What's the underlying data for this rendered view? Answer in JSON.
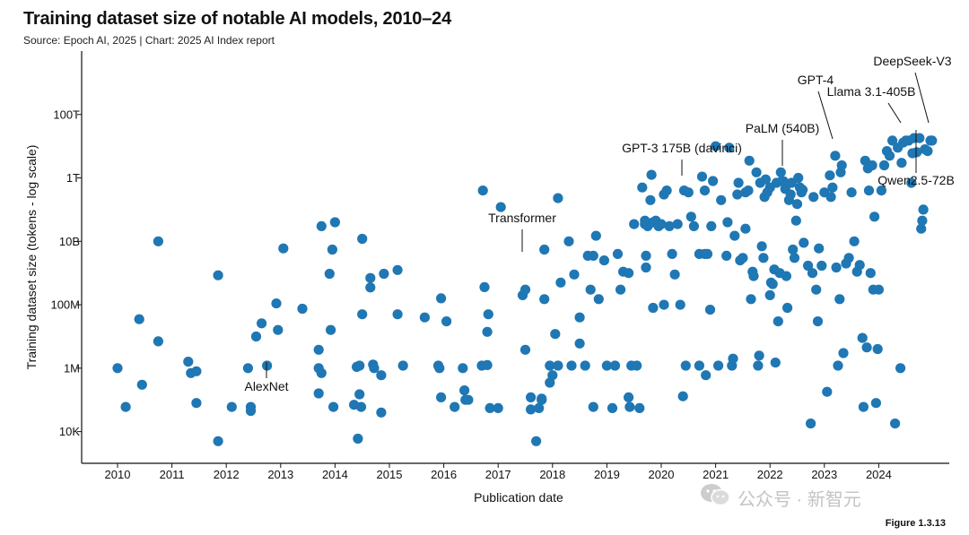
{
  "header": {
    "title": "Training dataset size of notable AI models, 2010–24",
    "subtitle": "Source: Epoch AI, 2025 | Chart: 2025 AI Index report"
  },
  "footer": {
    "figure_label": "Figure 1.3.13",
    "watermark_text": "公众号 · 新智元"
  },
  "colors": {
    "point": "#1f77b4",
    "axis": "#111111",
    "watermark": "#bdbdbd"
  },
  "chart_data": {
    "type": "scatter",
    "title": "Training dataset size of notable AI models, 2010–24",
    "xlabel": "Publication date",
    "ylabel": "Training dataset size (tokens - log scale)",
    "y_scale": "log",
    "xlim": [
      2009.7,
      2025.1
    ],
    "ylim": [
      1000,
      10000000000000000
    ],
    "x_ticks": [
      "2010",
      "2011",
      "2012",
      "2013",
      "2014",
      "2015",
      "2016",
      "2017",
      "2018",
      "2019",
      "2020",
      "2021",
      "2022",
      "2023",
      "2024"
    ],
    "y_ticks": [
      {
        "label": "10K",
        "value": 10000
      },
      {
        "label": "1M",
        "value": 1000000
      },
      {
        "label": "100M",
        "value": 100000000
      },
      {
        "label": "10B",
        "value": 10000000000
      },
      {
        "label": "1T",
        "value": 1000000000000
      },
      {
        "label": "100T",
        "value": 100000000000000
      }
    ],
    "grid": false,
    "legend": "none",
    "annotations": [
      {
        "label": "AlexNet",
        "x": 2012.75,
        "y": 1200000
      },
      {
        "label": "Transformer",
        "x": 2017.45,
        "y": 200000000
      },
      {
        "label": "GPT-3 175B (davinci)",
        "x": 2020.42,
        "y": 400000000000
      },
      {
        "label": "PaLM (540B)",
        "x": 2022.25,
        "y": 780000000000
      },
      {
        "label": "GPT-4",
        "x": 2023.2,
        "y": 5000000000000
      },
      {
        "label": "Llama 3.1-405B",
        "x": 2024.55,
        "y": 15000000000000
      },
      {
        "label": "DeepSeek-V3",
        "x": 2024.98,
        "y": 15000000000000
      },
      {
        "label": "Qwen2.5-72B",
        "x": 2024.75,
        "y": 18000000000000
      }
    ],
    "points": [
      [
        2010.0,
        1000000
      ],
      [
        2010.15,
        60000
      ],
      [
        2010.4,
        35000000
      ],
      [
        2010.45,
        300000
      ],
      [
        2010.75,
        10000000000
      ],
      [
        2010.75,
        7000000
      ],
      [
        2011.3,
        1600000
      ],
      [
        2011.35,
        700000
      ],
      [
        2011.45,
        800000
      ],
      [
        2011.45,
        80000
      ],
      [
        2011.85,
        5000
      ],
      [
        2011.85,
        850000000
      ],
      [
        2012.1,
        60000
      ],
      [
        2012.4,
        1000000
      ],
      [
        2012.45,
        60000
      ],
      [
        2012.45,
        45000
      ],
      [
        2012.55,
        10000000
      ],
      [
        2012.65,
        26000000
      ],
      [
        2012.75,
        1200000
      ],
      [
        2012.92,
        110000000
      ],
      [
        2012.95,
        16000000
      ],
      [
        2013.05,
        6000000000
      ],
      [
        2013.4,
        75000000
      ],
      [
        2013.7,
        3800000
      ],
      [
        2013.7,
        1000000
      ],
      [
        2013.7,
        160000
      ],
      [
        2013.75,
        700000
      ],
      [
        2013.75,
        30000000000
      ],
      [
        2013.9,
        950000000
      ],
      [
        2013.92,
        16000000
      ],
      [
        2013.95,
        5500000000
      ],
      [
        2013.97,
        60000
      ],
      [
        2014.0,
        40000000000
      ],
      [
        2014.35,
        70000
      ],
      [
        2014.4,
        1100000
      ],
      [
        2014.42,
        6000
      ],
      [
        2014.45,
        1200000
      ],
      [
        2014.45,
        150000
      ],
      [
        2014.48,
        60000
      ],
      [
        2014.5,
        50000000
      ],
      [
        2014.5,
        12000000000
      ],
      [
        2014.65,
        350000000
      ],
      [
        2014.65,
        700000000
      ],
      [
        2014.7,
        1300000
      ],
      [
        2014.72,
        1000000
      ],
      [
        2014.85,
        40000
      ],
      [
        2014.85,
        600000
      ],
      [
        2014.9,
        950000000
      ],
      [
        2015.15,
        1250000000
      ],
      [
        2015.15,
        50000000
      ],
      [
        2015.25,
        1200000
      ],
      [
        2015.65,
        40000000
      ],
      [
        2015.9,
        1200000
      ],
      [
        2015.92,
        1000000
      ],
      [
        2015.95,
        120000
      ],
      [
        2015.95,
        160000000
      ],
      [
        2016.05,
        30000000
      ],
      [
        2016.2,
        60000
      ],
      [
        2016.35,
        1000000
      ],
      [
        2016.38,
        200000
      ],
      [
        2016.4,
        100000
      ],
      [
        2016.45,
        100000
      ],
      [
        2016.7,
        1200000
      ],
      [
        2016.72,
        400000000000
      ],
      [
        2016.75,
        360000000
      ],
      [
        2016.8,
        14000000
      ],
      [
        2016.8,
        1250000
      ],
      [
        2016.82,
        50000000
      ],
      [
        2016.85,
        55000
      ],
      [
        2017.0,
        55000
      ],
      [
        2017.05,
        120000000000
      ],
      [
        2017.45,
        200000000
      ],
      [
        2017.5,
        3800000
      ],
      [
        2017.5,
        300000000
      ],
      [
        2017.6,
        50000
      ],
      [
        2017.6,
        120000
      ],
      [
        2017.7,
        5000
      ],
      [
        2017.75,
        55000
      ],
      [
        2017.8,
        100000
      ],
      [
        2017.8,
        110000
      ],
      [
        2017.85,
        5500000000
      ],
      [
        2017.85,
        150000000
      ],
      [
        2017.95,
        1200000
      ],
      [
        2017.95,
        350000
      ],
      [
        2018.0,
        600000
      ],
      [
        2018.05,
        12000000
      ],
      [
        2018.1,
        1200000
      ],
      [
        2018.1,
        230000000000
      ],
      [
        2018.15,
        500000000
      ],
      [
        2018.3,
        10000000000
      ],
      [
        2018.35,
        1200000
      ],
      [
        2018.4,
        900000000
      ],
      [
        2018.5,
        40000000
      ],
      [
        2018.5,
        6000000
      ],
      [
        2018.6,
        1200000
      ],
      [
        2018.65,
        3500000000
      ],
      [
        2018.7,
        300000000
      ],
      [
        2018.75,
        60000
      ],
      [
        2018.75,
        3500000000
      ],
      [
        2018.8,
        15000000000
      ],
      [
        2018.85,
        150000000
      ],
      [
        2018.95,
        2500000000
      ],
      [
        2019.0,
        1200000
      ],
      [
        2019.1,
        55000
      ],
      [
        2019.15,
        1200000
      ],
      [
        2019.2,
        4000000000
      ],
      [
        2019.25,
        300000000
      ],
      [
        2019.3,
        1100000000
      ],
      [
        2019.4,
        1000000000
      ],
      [
        2019.4,
        120000
      ],
      [
        2019.42,
        60000
      ],
      [
        2019.45,
        1200000
      ],
      [
        2019.5,
        35000000000
      ],
      [
        2019.55,
        1200000
      ],
      [
        2019.6,
        55000
      ],
      [
        2019.65,
        500000000000
      ],
      [
        2019.7,
        35000000000
      ],
      [
        2019.7,
        45000000000
      ],
      [
        2019.72,
        1500000000
      ],
      [
        2019.72,
        3500000000
      ],
      [
        2019.75,
        30000000000
      ],
      [
        2019.8,
        200000000000
      ],
      [
        2019.82,
        1250000000000
      ],
      [
        2019.85,
        80000000
      ],
      [
        2019.85,
        40000000000
      ],
      [
        2019.9,
        45000000000
      ],
      [
        2019.95,
        30000000000
      ],
      [
        2020.0,
        35000000000
      ],
      [
        2020.05,
        300000000000
      ],
      [
        2020.05,
        100000000
      ],
      [
        2020.1,
        400000000000
      ],
      [
        2020.15,
        30000000000
      ],
      [
        2020.2,
        4000000000
      ],
      [
        2020.25,
        900000000
      ],
      [
        2020.3,
        35000000000
      ],
      [
        2020.35,
        100000000
      ],
      [
        2020.4,
        130000
      ],
      [
        2020.42,
        400000000000
      ],
      [
        2020.45,
        1200000
      ],
      [
        2020.5,
        350000000000
      ],
      [
        2020.55,
        60000000000
      ],
      [
        2020.6,
        30000000000
      ],
      [
        2020.7,
        4000000000
      ],
      [
        2020.7,
        1200000
      ],
      [
        2020.75,
        1100000000000
      ],
      [
        2020.8,
        4000000000
      ],
      [
        2020.8,
        400000000000
      ],
      [
        2020.82,
        600000
      ],
      [
        2020.85,
        4000000000
      ],
      [
        2020.9,
        70000000
      ],
      [
        2020.92,
        30000000000
      ],
      [
        2020.95,
        800000000000
      ],
      [
        2021.0,
        10000000000000
      ],
      [
        2021.05,
        1200000
      ],
      [
        2021.1,
        200000000000
      ],
      [
        2021.2,
        3500000000
      ],
      [
        2021.22,
        40000000000
      ],
      [
        2021.25,
        9000000000000
      ],
      [
        2021.3,
        1200000
      ],
      [
        2021.32,
        2000000
      ],
      [
        2021.35,
        15000000000
      ],
      [
        2021.4,
        300000000000
      ],
      [
        2021.42,
        700000000000
      ],
      [
        2021.45,
        2500000000
      ],
      [
        2021.5,
        3000000000
      ],
      [
        2021.55,
        25000000000
      ],
      [
        2021.55,
        350000000000
      ],
      [
        2021.6,
        400000000000
      ],
      [
        2021.62,
        3500000000000
      ],
      [
        2021.65,
        150000000
      ],
      [
        2021.68,
        1100000000
      ],
      [
        2021.7,
        800000000
      ],
      [
        2021.75,
        1500000000000
      ],
      [
        2021.78,
        1200000
      ],
      [
        2021.8,
        2500000
      ],
      [
        2021.82,
        700000000000
      ],
      [
        2021.85,
        7000000000
      ],
      [
        2021.88,
        3000000000
      ],
      [
        2021.9,
        250000000000
      ],
      [
        2021.92,
        900000000000
      ],
      [
        2021.95,
        350000000000
      ],
      [
        2022.0,
        200000000
      ],
      [
        2022.0,
        500000000000
      ],
      [
        2022.02,
        500000000
      ],
      [
        2022.05,
        450000000
      ],
      [
        2022.08,
        1300000000
      ],
      [
        2022.1,
        1500000
      ],
      [
        2022.12,
        700000000000
      ],
      [
        2022.15,
        30000000
      ],
      [
        2022.18,
        1000000000
      ],
      [
        2022.2,
        1500000000000
      ],
      [
        2022.22,
        800000000000
      ],
      [
        2022.25,
        780000000000
      ],
      [
        2022.28,
        450000000000
      ],
      [
        2022.3,
        800000000
      ],
      [
        2022.3,
        600000000000
      ],
      [
        2022.32,
        80000000
      ],
      [
        2022.35,
        200000000000
      ],
      [
        2022.38,
        300000000000
      ],
      [
        2022.4,
        700000000000
      ],
      [
        2022.42,
        5500000000
      ],
      [
        2022.45,
        3000000000
      ],
      [
        2022.48,
        45000000000
      ],
      [
        2022.5,
        150000000000
      ],
      [
        2022.52,
        1000000000000
      ],
      [
        2022.55,
        500000000000
      ],
      [
        2022.58,
        350000000000
      ],
      [
        2022.6,
        420000000000
      ],
      [
        2022.62,
        9000000000
      ],
      [
        2022.7,
        1700000000
      ],
      [
        2022.75,
        18000
      ],
      [
        2022.78,
        1000000000
      ],
      [
        2022.8,
        250000000000
      ],
      [
        2022.85,
        300000000
      ],
      [
        2022.88,
        30000000
      ],
      [
        2022.9,
        6000000000
      ],
      [
        2022.95,
        1700000000
      ],
      [
        2023.0,
        350000000000
      ],
      [
        2023.05,
        180000
      ],
      [
        2023.1,
        1200000000000
      ],
      [
        2023.12,
        250000000000
      ],
      [
        2023.15,
        500000000000
      ],
      [
        2023.2,
        5000000000000
      ],
      [
        2023.22,
        1500000000
      ],
      [
        2023.25,
        1200000
      ],
      [
        2023.28,
        150000000
      ],
      [
        2023.3,
        1500000000000
      ],
      [
        2023.32,
        2500000000000
      ],
      [
        2023.35,
        3000000
      ],
      [
        2023.4,
        2000000000
      ],
      [
        2023.45,
        3000000000
      ],
      [
        2023.5,
        350000000000
      ],
      [
        2023.55,
        10000000000
      ],
      [
        2023.6,
        1100000000
      ],
      [
        2023.65,
        1800000000
      ],
      [
        2023.7,
        9000000
      ],
      [
        2023.72,
        60000
      ],
      [
        2023.75,
        3500000000000
      ],
      [
        2023.78,
        4500000
      ],
      [
        2023.8,
        2000000000000
      ],
      [
        2023.82,
        400000000000
      ],
      [
        2023.85,
        1000000000
      ],
      [
        2023.88,
        2500000000000
      ],
      [
        2023.9,
        300000000
      ],
      [
        2023.92,
        60000000000
      ],
      [
        2023.95,
        80000
      ],
      [
        2023.98,
        4000000
      ],
      [
        2024.0,
        300000000
      ],
      [
        2024.05,
        400000000000
      ],
      [
        2024.1,
        2500000000000
      ],
      [
        2024.15,
        7000000000000
      ],
      [
        2024.2,
        5000000000000
      ],
      [
        2024.25,
        15000000000000
      ],
      [
        2024.3,
        18000
      ],
      [
        2024.35,
        9000000000000
      ],
      [
        2024.4,
        1000000
      ],
      [
        2024.42,
        3000000000000
      ],
      [
        2024.45,
        13000000000000
      ],
      [
        2024.5,
        15000000000000
      ],
      [
        2024.55,
        15000000000000
      ],
      [
        2024.6,
        700000000000
      ],
      [
        2024.62,
        6000000000000
      ],
      [
        2024.65,
        18000000000000
      ],
      [
        2024.7,
        6500000000000
      ],
      [
        2024.75,
        18000000000000
      ],
      [
        2024.78,
        25000000000
      ],
      [
        2024.8,
        45000000000
      ],
      [
        2024.82,
        100000000000
      ],
      [
        2024.85,
        8000000000000
      ],
      [
        2024.9,
        7000000000000
      ],
      [
        2024.95,
        15000000000000
      ],
      [
        2024.98,
        15000000000000
      ]
    ]
  }
}
